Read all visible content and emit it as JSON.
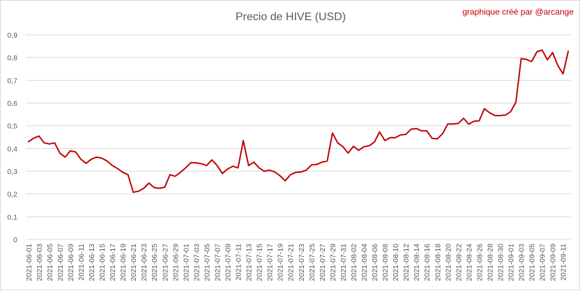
{
  "chart_data": {
    "type": "line",
    "title": "Precio de HIVE (USD)",
    "credit": "graphique créé par @arcange",
    "xlabel": "",
    "ylabel": "",
    "ylim": [
      0,
      0.9
    ],
    "y_ticks": [
      "0",
      "0,1",
      "0,2",
      "0,3",
      "0,4",
      "0,5",
      "0,6",
      "0,7",
      "0,8",
      "0,9"
    ],
    "grid": true,
    "legend": "none",
    "line_color": "#c00000",
    "start_date": "2021-06-01",
    "x_tick_labels": [
      "2021-06-01",
      "2021-06-03",
      "2021-06-05",
      "2021-06-07",
      "2021-06-09",
      "2021-06-11",
      "2021-06-13",
      "2021-06-15",
      "2021-06-17",
      "2021-06-19",
      "2021-06-21",
      "2021-06-23",
      "2021-06-25",
      "2021-06-27",
      "2021-06-29",
      "2021-07-01",
      "2021-07-03",
      "2021-07-05",
      "2021-07-07",
      "2021-07-09",
      "2021-07-11",
      "2021-07-13",
      "2021-07-15",
      "2021-07-17",
      "2021-07-19",
      "2021-07-21",
      "2021-07-23",
      "2021-07-25",
      "2021-07-27",
      "2021-07-29",
      "2021-07-31",
      "2021-08-02",
      "2021-08-04",
      "2021-08-06",
      "2021-08-08",
      "2021-08-10",
      "2021-08-12",
      "2021-08-14",
      "2021-08-16",
      "2021-08-18",
      "2021-08-20",
      "2021-08-22",
      "2021-08-24",
      "2021-08-26",
      "2021-08-28",
      "2021-08-30",
      "2021-09-01",
      "2021-09-03",
      "2021-09-05",
      "2021-09-07",
      "2021-09-09",
      "2021-09-11"
    ],
    "series": [
      {
        "values": [
          0.43,
          0.445,
          0.455,
          0.425,
          0.42,
          0.425,
          0.38,
          0.362,
          0.39,
          0.385,
          0.353,
          0.335,
          0.353,
          0.362,
          0.358,
          0.345,
          0.325,
          0.312,
          0.295,
          0.285,
          0.208,
          0.212,
          0.225,
          0.248,
          0.228,
          0.225,
          0.23,
          0.285,
          0.278,
          0.295,
          0.315,
          0.338,
          0.337,
          0.333,
          0.325,
          0.35,
          0.325,
          0.29,
          0.31,
          0.322,
          0.315,
          0.435,
          0.325,
          0.34,
          0.315,
          0.3,
          0.305,
          0.297,
          0.28,
          0.258,
          0.285,
          0.295,
          0.297,
          0.305,
          0.328,
          0.33,
          0.34,
          0.345,
          0.468,
          0.425,
          0.408,
          0.38,
          0.41,
          0.392,
          0.408,
          0.412,
          0.428,
          0.473,
          0.435,
          0.448,
          0.448,
          0.46,
          0.462,
          0.485,
          0.488,
          0.478,
          0.478,
          0.445,
          0.442,
          0.465,
          0.508,
          0.508,
          0.51,
          0.533,
          0.507,
          0.52,
          0.522,
          0.575,
          0.557,
          0.545,
          0.545,
          0.547,
          0.562,
          0.603,
          0.795,
          0.792,
          0.782,
          0.825,
          0.833,
          0.79,
          0.822,
          0.765,
          0.728,
          0.828
        ]
      }
    ]
  }
}
